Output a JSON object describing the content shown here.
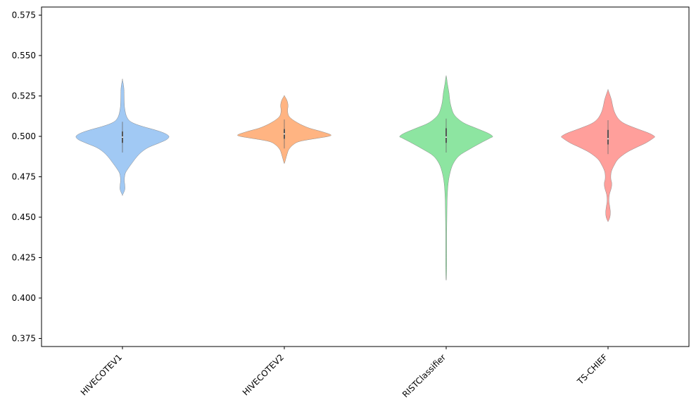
{
  "chart_data": {
    "type": "violin",
    "title": "",
    "xlabel": "",
    "ylabel": "",
    "ylim": [
      0.37,
      0.58
    ],
    "yticks": [
      "0.375",
      "0.400",
      "0.425",
      "0.450",
      "0.475",
      "0.500",
      "0.525",
      "0.550",
      "0.575"
    ],
    "categories": [
      "HIVECOTEV1",
      "HIVECOTEV2",
      "RISTClassifier",
      "TS-CHIEF"
    ],
    "series": [
      {
        "category": "HIVECOTEV1",
        "color": "#a1c9f4",
        "min": 0.4637,
        "max": 0.535,
        "q1": 0.496,
        "median": 0.4995,
        "q3": 0.503,
        "profile": [
          [
            0.4637,
            0.002
          ],
          [
            0.467,
            0.05
          ],
          [
            0.47,
            0.05
          ],
          [
            0.473,
            0.04
          ],
          [
            0.477,
            0.06
          ],
          [
            0.48,
            0.12
          ],
          [
            0.484,
            0.22
          ],
          [
            0.487,
            0.3
          ],
          [
            0.49,
            0.4
          ],
          [
            0.493,
            0.55
          ],
          [
            0.496,
            0.8
          ],
          [
            0.498,
            0.95
          ],
          [
            0.5,
            1.0
          ],
          [
            0.502,
            0.9
          ],
          [
            0.504,
            0.7
          ],
          [
            0.506,
            0.45
          ],
          [
            0.508,
            0.25
          ],
          [
            0.51,
            0.14
          ],
          [
            0.513,
            0.08
          ],
          [
            0.517,
            0.05
          ],
          [
            0.52,
            0.04
          ],
          [
            0.525,
            0.035
          ],
          [
            0.53,
            0.03
          ],
          [
            0.535,
            0.002
          ]
        ]
      },
      {
        "category": "HIVECOTEV2",
        "color": "#ffb482",
        "min": 0.4835,
        "max": 0.525,
        "q1": 0.4985,
        "median": 0.5015,
        "q3": 0.5045,
        "profile": [
          [
            0.4835,
            0.005
          ],
          [
            0.486,
            0.03
          ],
          [
            0.489,
            0.06
          ],
          [
            0.492,
            0.1
          ],
          [
            0.495,
            0.2
          ],
          [
            0.497,
            0.35
          ],
          [
            0.499,
            0.75
          ],
          [
            0.5,
            0.95
          ],
          [
            0.501,
            1.0
          ],
          [
            0.503,
            0.8
          ],
          [
            0.505,
            0.55
          ],
          [
            0.507,
            0.38
          ],
          [
            0.509,
            0.25
          ],
          [
            0.511,
            0.15
          ],
          [
            0.513,
            0.09
          ],
          [
            0.516,
            0.07
          ],
          [
            0.519,
            0.08
          ],
          [
            0.522,
            0.06
          ],
          [
            0.525,
            0.005
          ]
        ]
      },
      {
        "category": "RISTClassifier",
        "color": "#8de5a1",
        "min": 0.412,
        "max": 0.537,
        "q1": 0.496,
        "median": 0.4995,
        "q3": 0.505,
        "profile": [
          [
            0.412,
            0.005
          ],
          [
            0.42,
            0.01
          ],
          [
            0.43,
            0.01
          ],
          [
            0.44,
            0.01
          ],
          [
            0.45,
            0.015
          ],
          [
            0.46,
            0.02
          ],
          [
            0.47,
            0.04
          ],
          [
            0.477,
            0.08
          ],
          [
            0.483,
            0.15
          ],
          [
            0.488,
            0.28
          ],
          [
            0.492,
            0.5
          ],
          [
            0.496,
            0.75
          ],
          [
            0.499,
            0.95
          ],
          [
            0.5,
            1.0
          ],
          [
            0.502,
            0.9
          ],
          [
            0.505,
            0.65
          ],
          [
            0.508,
            0.4
          ],
          [
            0.511,
            0.25
          ],
          [
            0.514,
            0.16
          ],
          [
            0.518,
            0.11
          ],
          [
            0.522,
            0.08
          ],
          [
            0.527,
            0.06
          ],
          [
            0.532,
            0.03
          ],
          [
            0.537,
            0.005
          ]
        ]
      },
      {
        "category": "TS-CHIEF",
        "color": "#ff9f9b",
        "min": 0.4475,
        "max": 0.5285,
        "q1": 0.495,
        "median": 0.4985,
        "q3": 0.504,
        "profile": [
          [
            0.4475,
            0.005
          ],
          [
            0.45,
            0.04
          ],
          [
            0.453,
            0.05
          ],
          [
            0.456,
            0.04
          ],
          [
            0.46,
            0.02
          ],
          [
            0.464,
            0.03
          ],
          [
            0.468,
            0.07
          ],
          [
            0.471,
            0.08
          ],
          [
            0.474,
            0.06
          ],
          [
            0.478,
            0.07
          ],
          [
            0.482,
            0.13
          ],
          [
            0.486,
            0.22
          ],
          [
            0.49,
            0.4
          ],
          [
            0.493,
            0.6
          ],
          [
            0.496,
            0.82
          ],
          [
            0.499,
            0.98
          ],
          [
            0.5,
            1.0
          ],
          [
            0.502,
            0.88
          ],
          [
            0.505,
            0.6
          ],
          [
            0.508,
            0.35
          ],
          [
            0.511,
            0.22
          ],
          [
            0.515,
            0.14
          ],
          [
            0.519,
            0.1
          ],
          [
            0.523,
            0.07
          ],
          [
            0.5285,
            0.005
          ]
        ]
      }
    ]
  }
}
